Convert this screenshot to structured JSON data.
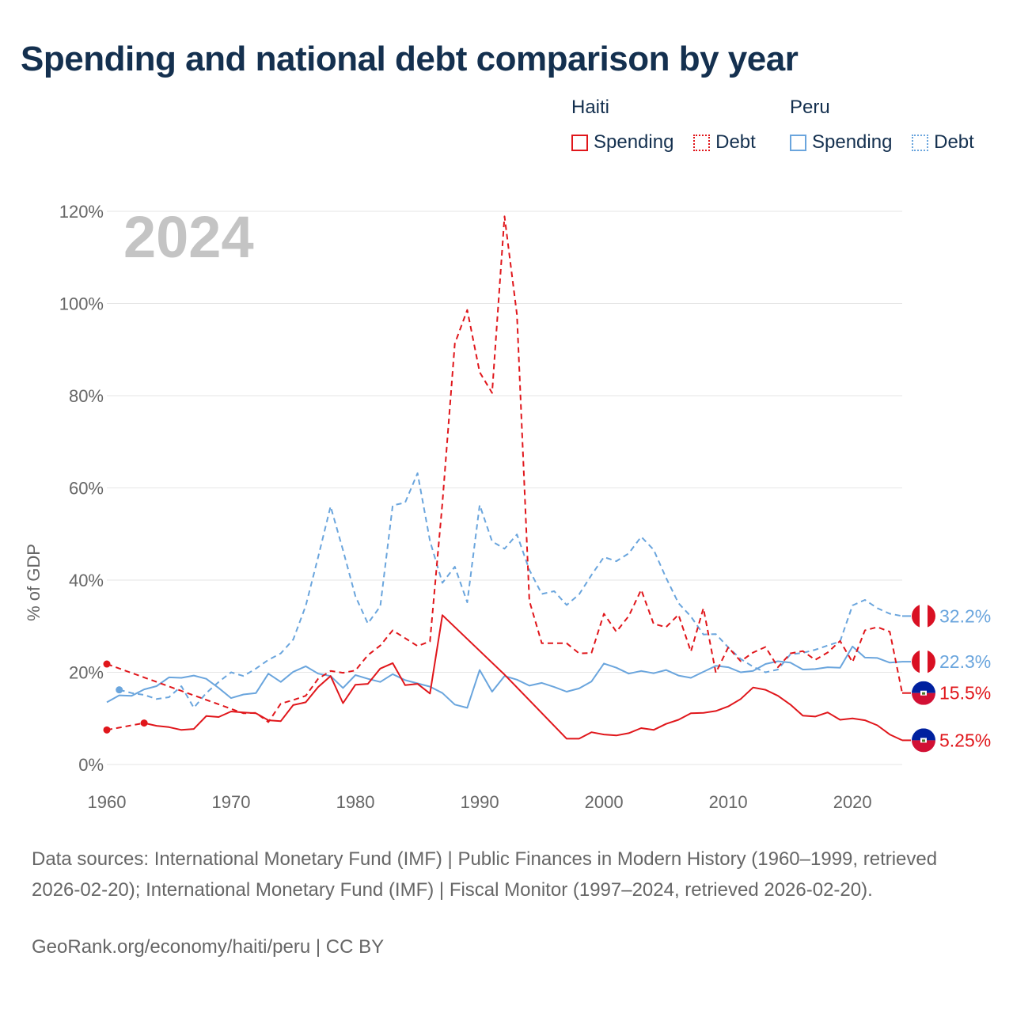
{
  "page": {
    "title": "Spending and national debt comparison by year",
    "source_text": "Data sources: International Monetary Fund (IMF) | Public Finances in Modern History (1960–1999, retrieved 2026-02-20); International Monetary Fund (IMF) | Fiscal Monitor (1997–2024, retrieved 2026-02-20).",
    "credit": "GeoRank.org/economy/haiti/peru | CC BY"
  },
  "legend": {
    "groups": [
      {
        "country": "Haiti",
        "spending_label": "Spending",
        "debt_label": "Debt"
      },
      {
        "country": "Peru",
        "spending_label": "Spending",
        "debt_label": "Debt"
      }
    ]
  },
  "colors": {
    "haiti": "#e0161b",
    "peru": "#6aa5dd",
    "grid": "#e6e6e6",
    "text": "#666666"
  },
  "chart_data": {
    "type": "line",
    "year_overlay": "2024",
    "ylabel": "% of GDP",
    "xlim": [
      1960,
      2024
    ],
    "ylim": [
      0,
      120
    ],
    "x_ticks": [
      1960,
      1970,
      1980,
      1990,
      2000,
      2010,
      2020
    ],
    "y_ticks": [
      0,
      20,
      40,
      60,
      80,
      100,
      120
    ],
    "y_tick_labels": [
      "0%",
      "20%",
      "40%",
      "60%",
      "80%",
      "100%",
      "120%"
    ],
    "series": [
      {
        "name": "Peru Debt",
        "country": "Peru",
        "kind": "debt",
        "dashed": true,
        "color": "#6aa5dd",
        "end_label": "32.2%",
        "points": [
          [
            1961,
            16.2
          ],
          [
            1962,
            15.5
          ],
          [
            1963,
            15.1
          ],
          [
            1964,
            14.2
          ],
          [
            1965,
            14.6
          ],
          [
            1966,
            17.0
          ],
          [
            1967,
            12.3
          ],
          [
            1968,
            15.5
          ],
          [
            1969,
            17.9
          ],
          [
            1970,
            20.0
          ],
          [
            1971,
            19.2
          ],
          [
            1972,
            20.8
          ],
          [
            1973,
            22.7
          ],
          [
            1974,
            24.1
          ],
          [
            1975,
            27.1
          ],
          [
            1976,
            34.4
          ],
          [
            1977,
            45.0
          ],
          [
            1978,
            56.0
          ],
          [
            1979,
            46.5
          ],
          [
            1980,
            36.5
          ],
          [
            1981,
            30.6
          ],
          [
            1982,
            34.3
          ],
          [
            1983,
            56.2
          ],
          [
            1984,
            56.8
          ],
          [
            1985,
            63.2
          ],
          [
            1986,
            48.5
          ],
          [
            1987,
            39.4
          ],
          [
            1988,
            42.9
          ],
          [
            1989,
            35.2
          ],
          [
            1990,
            56.3
          ],
          [
            1991,
            48.4
          ],
          [
            1992,
            46.8
          ],
          [
            1993,
            49.9
          ],
          [
            1994,
            42.2
          ],
          [
            1995,
            37.0
          ],
          [
            1996,
            37.6
          ],
          [
            1997,
            34.6
          ],
          [
            1998,
            36.9
          ],
          [
            1999,
            41.1
          ],
          [
            2000,
            45.0
          ],
          [
            2001,
            44.1
          ],
          [
            2002,
            45.8
          ],
          [
            2003,
            49.4
          ],
          [
            2004,
            46.6
          ],
          [
            2005,
            40.5
          ],
          [
            2006,
            35.0
          ],
          [
            2007,
            32.1
          ],
          [
            2008,
            28.2
          ],
          [
            2009,
            28.3
          ],
          [
            2010,
            25.4
          ],
          [
            2011,
            22.9
          ],
          [
            2012,
            21.2
          ],
          [
            2013,
            20.0
          ],
          [
            2014,
            20.6
          ],
          [
            2015,
            23.9
          ],
          [
            2016,
            24.2
          ],
          [
            2017,
            24.9
          ],
          [
            2018,
            25.8
          ],
          [
            2019,
            26.7
          ],
          [
            2020,
            34.5
          ],
          [
            2021,
            35.7
          ],
          [
            2022,
            33.9
          ],
          [
            2023,
            32.7
          ],
          [
            2024,
            32.2
          ]
        ]
      },
      {
        "name": "Peru Spending",
        "country": "Peru",
        "kind": "spending",
        "dashed": false,
        "color": "#6aa5dd",
        "end_label": "22.3%",
        "points": [
          [
            1960,
            13.5
          ],
          [
            1961,
            15.0
          ],
          [
            1962,
            14.9
          ],
          [
            1963,
            16.3
          ],
          [
            1964,
            17.0
          ],
          [
            1965,
            18.9
          ],
          [
            1966,
            18.8
          ],
          [
            1967,
            19.3
          ],
          [
            1968,
            18.6
          ],
          [
            1969,
            16.6
          ],
          [
            1970,
            14.4
          ],
          [
            1971,
            15.2
          ],
          [
            1972,
            15.5
          ],
          [
            1973,
            19.7
          ],
          [
            1974,
            17.9
          ],
          [
            1975,
            20.1
          ],
          [
            1976,
            21.3
          ],
          [
            1977,
            19.7
          ],
          [
            1978,
            19.2
          ],
          [
            1979,
            16.6
          ],
          [
            1980,
            19.4
          ],
          [
            1981,
            18.6
          ],
          [
            1982,
            17.9
          ],
          [
            1983,
            19.6
          ],
          [
            1984,
            18.3
          ],
          [
            1985,
            17.6
          ],
          [
            1986,
            16.9
          ],
          [
            1987,
            15.5
          ],
          [
            1988,
            13.0
          ],
          [
            1989,
            12.3
          ],
          [
            1990,
            20.5
          ],
          [
            1991,
            15.8
          ],
          [
            1992,
            19.2
          ],
          [
            1993,
            18.4
          ],
          [
            1994,
            17.1
          ],
          [
            1995,
            17.7
          ],
          [
            1996,
            16.8
          ],
          [
            1997,
            15.8
          ],
          [
            1998,
            16.5
          ],
          [
            1999,
            18.0
          ],
          [
            2000,
            21.9
          ],
          [
            2001,
            21.0
          ],
          [
            2002,
            19.7
          ],
          [
            2003,
            20.3
          ],
          [
            2004,
            19.8
          ],
          [
            2005,
            20.5
          ],
          [
            2006,
            19.3
          ],
          [
            2007,
            18.8
          ],
          [
            2008,
            20.1
          ],
          [
            2009,
            21.4
          ],
          [
            2010,
            21.1
          ],
          [
            2011,
            20.0
          ],
          [
            2012,
            20.3
          ],
          [
            2013,
            21.8
          ],
          [
            2014,
            22.4
          ],
          [
            2015,
            22.1
          ],
          [
            2016,
            20.6
          ],
          [
            2017,
            20.7
          ],
          [
            2018,
            21.1
          ],
          [
            2019,
            21.0
          ],
          [
            2020,
            25.6
          ],
          [
            2021,
            23.2
          ],
          [
            2022,
            23.1
          ],
          [
            2023,
            22.1
          ],
          [
            2024,
            22.3
          ]
        ]
      },
      {
        "name": "Haiti Debt",
        "country": "Haiti",
        "kind": "debt",
        "dashed": true,
        "color": "#e0161b",
        "end_label": "15.5%",
        "points": [
          [
            1960,
            21.8
          ],
          [
            1971,
            11.1
          ],
          [
            1972,
            11.2
          ],
          [
            1973,
            9.2
          ],
          [
            1974,
            13.2
          ],
          [
            1975,
            14.0
          ],
          [
            1976,
            14.9
          ],
          [
            1977,
            18.6
          ],
          [
            1978,
            20.3
          ],
          [
            1979,
            19.9
          ],
          [
            1980,
            20.4
          ],
          [
            1981,
            23.7
          ],
          [
            1982,
            25.8
          ],
          [
            1983,
            29.1
          ],
          [
            1984,
            27.4
          ],
          [
            1985,
            25.7
          ],
          [
            1986,
            26.7
          ],
          [
            1987,
            56.7
          ],
          [
            1988,
            91.3
          ],
          [
            1989,
            98.6
          ],
          [
            1990,
            85.1
          ],
          [
            1991,
            80.6
          ],
          [
            1992,
            118.9
          ],
          [
            1993,
            97.6
          ],
          [
            1994,
            35.5
          ],
          [
            1995,
            26.3
          ],
          [
            1996,
            26.3
          ],
          [
            1997,
            26.3
          ],
          [
            1998,
            24.1
          ],
          [
            1999,
            24.2
          ],
          [
            2000,
            32.7
          ],
          [
            2001,
            28.8
          ],
          [
            2002,
            32.2
          ],
          [
            2003,
            37.9
          ],
          [
            2004,
            30.5
          ],
          [
            2005,
            29.8
          ],
          [
            2006,
            32.5
          ],
          [
            2007,
            24.5
          ],
          [
            2008,
            33.9
          ],
          [
            2009,
            19.9
          ],
          [
            2010,
            25.4
          ],
          [
            2011,
            22.4
          ],
          [
            2012,
            24.3
          ],
          [
            2013,
            25.5
          ],
          [
            2014,
            21.1
          ],
          [
            2015,
            24.1
          ],
          [
            2016,
            24.6
          ],
          [
            2017,
            22.7
          ],
          [
            2018,
            24.3
          ],
          [
            2019,
            26.8
          ],
          [
            2020,
            22.2
          ],
          [
            2021,
            29.1
          ],
          [
            2022,
            29.8
          ],
          [
            2023,
            28.8
          ],
          [
            2024,
            15.5
          ]
        ]
      },
      {
        "name": "Haiti Spending",
        "country": "Haiti",
        "kind": "spending",
        "dashed": false,
        "color": "#e0161b",
        "end_label": "5.25%",
        "points": [
          [
            1963,
            9.0
          ],
          [
            1964,
            8.4
          ],
          [
            1965,
            8.1
          ],
          [
            1966,
            7.5
          ],
          [
            1967,
            7.7
          ],
          [
            1968,
            10.5
          ],
          [
            1969,
            10.3
          ],
          [
            1970,
            11.5
          ],
          [
            1971,
            11.3
          ],
          [
            1972,
            11.1
          ],
          [
            1973,
            9.6
          ],
          [
            1974,
            9.4
          ],
          [
            1975,
            12.9
          ],
          [
            1976,
            13.5
          ],
          [
            1977,
            16.8
          ],
          [
            1978,
            19.2
          ],
          [
            1979,
            13.3
          ],
          [
            1980,
            17.3
          ],
          [
            1981,
            17.5
          ],
          [
            1982,
            20.8
          ],
          [
            1983,
            22.0
          ],
          [
            1984,
            17.2
          ],
          [
            1985,
            17.5
          ],
          [
            1986,
            15.4
          ],
          [
            1987,
            32.4
          ],
          [
            1992,
            19.5
          ],
          [
            1997,
            5.6
          ],
          [
            1998,
            5.6
          ],
          [
            1999,
            7.0
          ],
          [
            2000,
            6.5
          ],
          [
            2001,
            6.3
          ],
          [
            2002,
            6.8
          ],
          [
            2003,
            7.9
          ],
          [
            2004,
            7.5
          ],
          [
            2005,
            8.8
          ],
          [
            2006,
            9.7
          ],
          [
            2007,
            11.1
          ],
          [
            2008,
            11.2
          ],
          [
            2009,
            11.6
          ],
          [
            2010,
            12.6
          ],
          [
            2011,
            14.2
          ],
          [
            2012,
            16.7
          ],
          [
            2013,
            16.2
          ],
          [
            2014,
            14.9
          ],
          [
            2015,
            13.0
          ],
          [
            2016,
            10.6
          ],
          [
            2017,
            10.4
          ],
          [
            2018,
            11.3
          ],
          [
            2019,
            9.7
          ],
          [
            2020,
            10.0
          ],
          [
            2021,
            9.6
          ],
          [
            2022,
            8.5
          ],
          [
            2023,
            6.5
          ],
          [
            2024,
            5.25
          ]
        ]
      }
    ],
    "isolated_points": [
      {
        "series": "Haiti Debt Early",
        "country": "Haiti",
        "dashed": true,
        "color": "#e0161b",
        "points": [
          [
            1960,
            7.5
          ],
          [
            1963,
            9.0
          ]
        ]
      }
    ],
    "markers": [
      {
        "country": "Haiti",
        "x": 1960,
        "y": 21.8
      },
      {
        "country": "Haiti",
        "x": 1960,
        "y": 7.5
      },
      {
        "country": "Haiti",
        "x": 1963,
        "y": 9.0
      },
      {
        "country": "Peru",
        "x": 1961,
        "y": 16.2
      }
    ]
  }
}
